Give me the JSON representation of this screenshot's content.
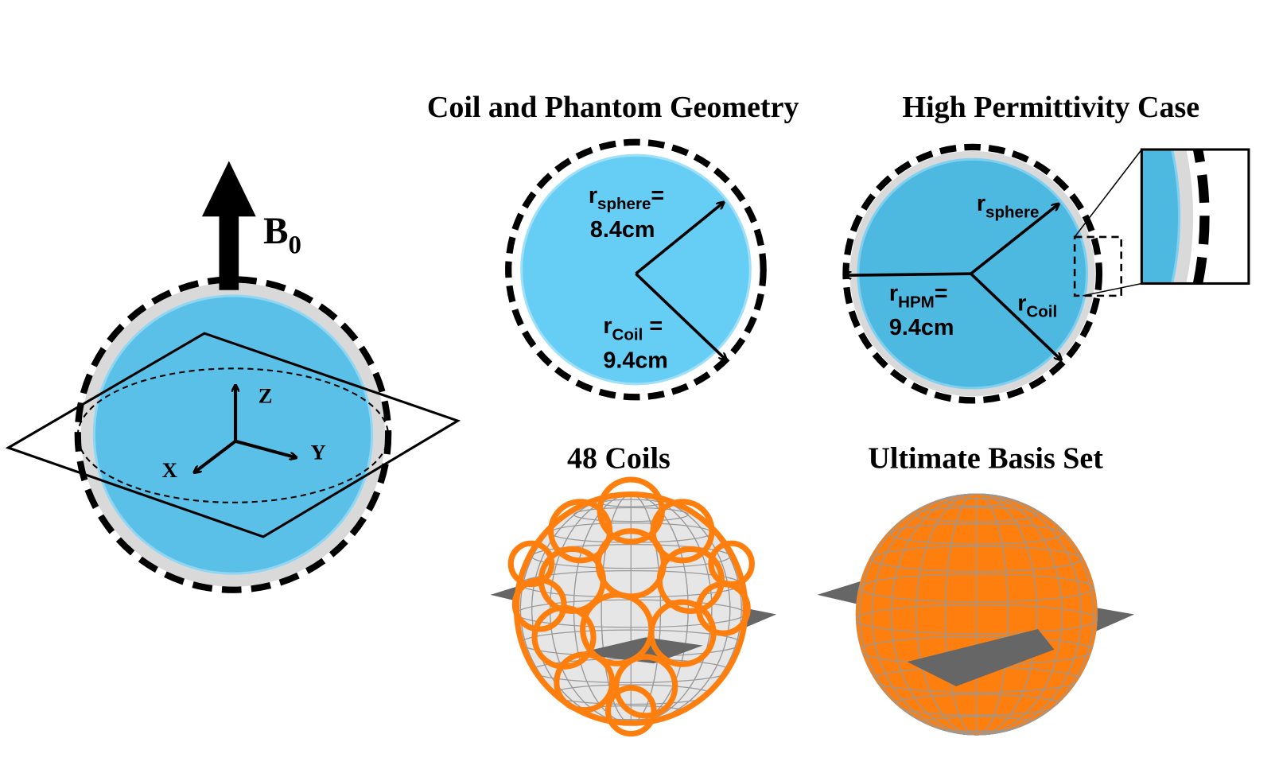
{
  "titles": {
    "geometry": "Coil and Phantom Geometry",
    "hpm": "High Permittivity Case",
    "coils": "48 Coils",
    "ultimate": "Ultimate Basis Set"
  },
  "field": {
    "symbol": "B",
    "subscript": "0"
  },
  "axes": {
    "z": "Z",
    "x": "X",
    "y": "Y"
  },
  "geometry_labels": {
    "r_sphere": {
      "symbol": "r",
      "subscript": "sphere",
      "suffix": "="
    },
    "sphere_value": "8.4cm",
    "r_coil": {
      "symbol": "r",
      "subscript": "Coil",
      "suffix": " ="
    },
    "coil_value": "9.4cm"
  },
  "hpm_labels": {
    "r_sphere": {
      "symbol": "r",
      "subscript": "sphere"
    },
    "r_hpm": {
      "symbol": "r",
      "subscript": "HPM",
      "suffix": "="
    },
    "hpm_value": "9.4cm",
    "r_coil": {
      "symbol": "r",
      "subscript": "Coil"
    }
  }
}
